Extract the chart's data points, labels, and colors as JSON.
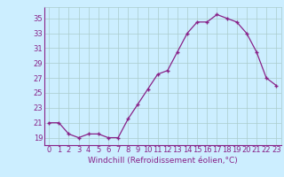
{
  "x": [
    0,
    1,
    2,
    3,
    4,
    5,
    6,
    7,
    8,
    9,
    10,
    11,
    12,
    13,
    14,
    15,
    16,
    17,
    18,
    19,
    20,
    21,
    22,
    23
  ],
  "y": [
    21,
    21,
    19.5,
    19,
    19.5,
    19.5,
    19,
    19,
    21.5,
    23.5,
    25.5,
    27.5,
    28,
    30.5,
    33,
    34.5,
    34.5,
    35.5,
    35,
    34.5,
    33,
    30.5,
    27,
    26
  ],
  "line_color": "#882288",
  "marker": "+",
  "bg_color": "#cceeff",
  "grid_color": "#aacccc",
  "xlabel": "Windchill (Refroidissement éolien,°C)",
  "xlabel_color": "#882288",
  "xlabel_fontsize": 6.5,
  "tick_color": "#882288",
  "tick_fontsize": 6.0,
  "xlim": [
    -0.5,
    23.5
  ],
  "ylim": [
    18.0,
    36.5
  ],
  "yticks": [
    19,
    21,
    23,
    25,
    27,
    29,
    31,
    33,
    35
  ],
  "xticks": [
    0,
    1,
    2,
    3,
    4,
    5,
    6,
    7,
    8,
    9,
    10,
    11,
    12,
    13,
    14,
    15,
    16,
    17,
    18,
    19,
    20,
    21,
    22,
    23
  ]
}
